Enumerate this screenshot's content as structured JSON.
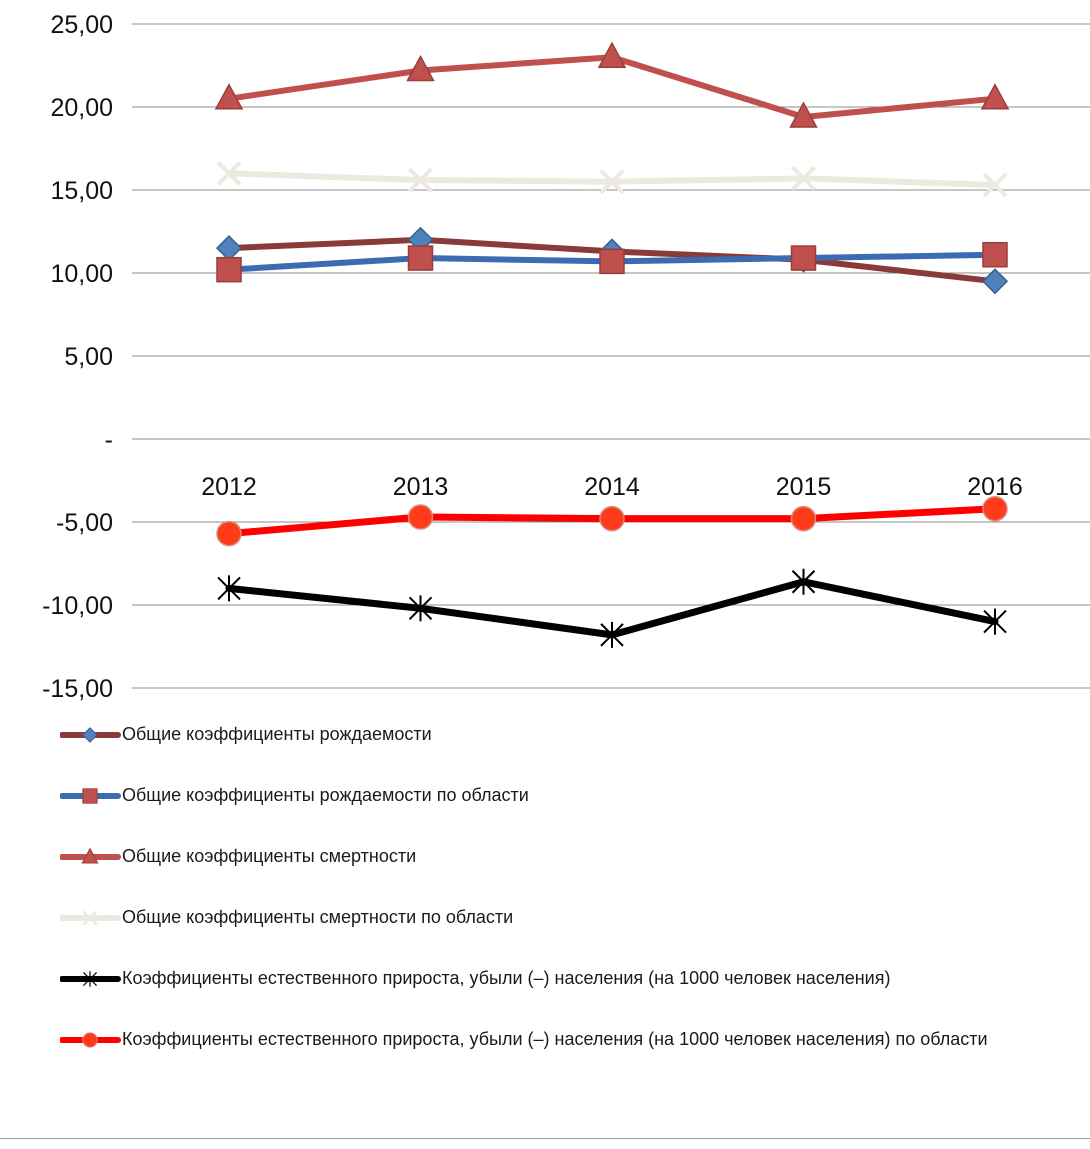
{
  "chart_data": {
    "type": "line",
    "categories": [
      "2012",
      "2013",
      "2014",
      "2015",
      "2016"
    ],
    "ylim": [
      -15,
      25
    ],
    "yticks": [
      25,
      20,
      15,
      10,
      5,
      0,
      -5,
      -10,
      -15
    ],
    "ytick_labels": [
      "25,00",
      "20,00",
      "15,00",
      "10,00",
      "5,00",
      "-",
      "-5,00",
      "-10,00",
      "-15,00"
    ],
    "grid": true,
    "legend_position": "bottom",
    "series": [
      {
        "name": "Общие коэффициенты рождаемости",
        "values": [
          11.5,
          12.0,
          11.3,
          10.8,
          9.5
        ],
        "line_color": "#8b3a3a",
        "marker": "diamond",
        "marker_color": "#4f81bd"
      },
      {
        "name": "Общие коэффициенты рождаемости по области",
        "values": [
          10.2,
          10.9,
          10.7,
          10.9,
          11.1
        ],
        "line_color": "#3b6bb0",
        "marker": "square",
        "marker_color": "#c0504d"
      },
      {
        "name": "Общие коэффициенты смертности",
        "values": [
          20.5,
          22.2,
          23.0,
          19.4,
          20.5
        ],
        "line_color": "#c0504d",
        "marker": "triangle",
        "marker_color": "#c0504d"
      },
      {
        "name": "Общие коэффициенты смертности по области",
        "values": [
          16.0,
          15.6,
          15.5,
          15.7,
          15.3
        ],
        "line_color": "#ece9df",
        "marker": "x",
        "marker_color": "#ece9df"
      },
      {
        "name": "Коэффициенты естественного прироста, убыли (–) населения (на 1000 человек населения)",
        "values": [
          -9.0,
          -10.2,
          -11.8,
          -8.6,
          -11.0
        ],
        "line_color": "#000000",
        "marker": "star",
        "marker_color": "#000000"
      },
      {
        "name": "Коэффициенты естественного прироста, убыли (–) населения (на 1000 человек населения) по области",
        "values": [
          -5.7,
          -4.7,
          -4.8,
          -4.8,
          -4.2
        ],
        "line_color": "#ff0000",
        "marker": "circle",
        "marker_color": "#ff3b1a"
      }
    ]
  }
}
